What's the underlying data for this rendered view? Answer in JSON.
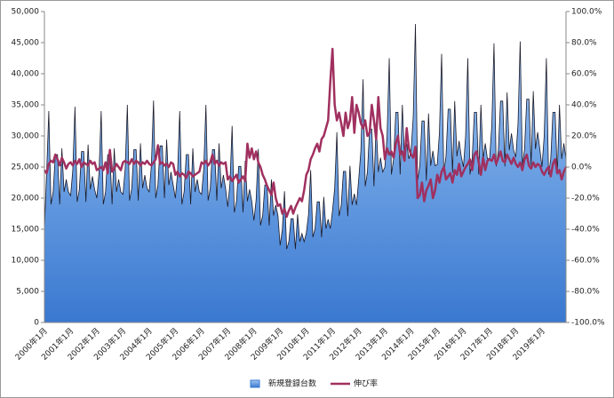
{
  "chart_data": {
    "type": "area-line",
    "categories": [
      "2000年1月",
      null,
      null,
      null,
      null,
      null,
      null,
      null,
      null,
      null,
      null,
      null,
      "2001年1月",
      null,
      null,
      null,
      null,
      null,
      null,
      null,
      null,
      null,
      null,
      null,
      "2002年1月",
      null,
      null,
      null,
      null,
      null,
      null,
      null,
      null,
      null,
      null,
      null,
      "2003年1月",
      null,
      null,
      null,
      null,
      null,
      null,
      null,
      null,
      null,
      null,
      null,
      "2004年1月",
      null,
      null,
      null,
      null,
      null,
      null,
      null,
      null,
      null,
      null,
      null,
      "2005年1月",
      null,
      null,
      null,
      null,
      null,
      null,
      null,
      null,
      null,
      null,
      null,
      "2006年1月",
      null,
      null,
      null,
      null,
      null,
      null,
      null,
      null,
      null,
      null,
      null,
      "2007年1月",
      null,
      null,
      null,
      null,
      null,
      null,
      null,
      null,
      null,
      null,
      null,
      "2008年1月",
      null,
      null,
      null,
      null,
      null,
      null,
      null,
      null,
      null,
      null,
      null,
      "2009年1月",
      null,
      null,
      null,
      null,
      null,
      null,
      null,
      null,
      null,
      null,
      null,
      "2010年1月",
      null,
      null,
      null,
      null,
      null,
      null,
      null,
      null,
      null,
      null,
      null,
      "2011年1月",
      null,
      null,
      null,
      null,
      null,
      null,
      null,
      null,
      null,
      null,
      null,
      "2012年1月",
      null,
      null,
      null,
      null,
      null,
      null,
      null,
      null,
      null,
      null,
      null,
      "2013年1月",
      null,
      null,
      null,
      null,
      null,
      null,
      null,
      null,
      null,
      null,
      null,
      "2014年1月",
      null,
      null,
      null,
      null,
      null,
      null,
      null,
      null,
      null,
      null,
      null,
      "2015年1月",
      null,
      null,
      null,
      null,
      null,
      null,
      null,
      null,
      null,
      null,
      null,
      "2016年1月",
      null,
      null,
      null,
      null,
      null,
      null,
      null,
      null,
      null,
      null,
      null,
      "2017年1月",
      null,
      null,
      null,
      null,
      null,
      null,
      null,
      null,
      null,
      null,
      null,
      "2018年1月",
      null,
      null,
      null,
      null,
      null,
      null,
      null,
      null,
      null,
      null,
      null,
      "2019年1月",
      null,
      null,
      null,
      null,
      null,
      null,
      null,
      null,
      null,
      null,
      null
    ],
    "series": [
      {
        "name": "新規登録台数",
        "color": "#4a86d8",
        "values": [
          15000,
          24000,
          34000,
          19000,
          21000,
          27000,
          27000,
          19000,
          28000,
          21000,
          23000,
          21000,
          20400,
          24500,
          34700,
          19400,
          21400,
          27500,
          27500,
          19400,
          28600,
          21400,
          23500,
          21400,
          20000,
          24000,
          34000,
          19000,
          21000,
          27000,
          27000,
          19000,
          28000,
          21000,
          23000,
          21000,
          20600,
          24700,
          35000,
          19600,
          21600,
          27800,
          27800,
          19600,
          28800,
          21600,
          23700,
          21600,
          21000,
          25200,
          35700,
          20000,
          22100,
          28400,
          28400,
          20000,
          29400,
          22100,
          24200,
          22100,
          20000,
          24000,
          34000,
          19000,
          21000,
          27000,
          27000,
          19000,
          28000,
          21000,
          23000,
          21000,
          20600,
          24700,
          35000,
          19600,
          21600,
          27800,
          27800,
          19600,
          28800,
          21600,
          23700,
          21600,
          18600,
          22300,
          31600,
          17700,
          19500,
          25100,
          25100,
          17700,
          26000,
          19500,
          21400,
          19500,
          16400,
          19700,
          27900,
          15600,
          17200,
          22100,
          22100,
          15600,
          23000,
          17200,
          18900,
          17200,
          12400,
          14900,
          21100,
          11800,
          13000,
          16700,
          16700,
          11800,
          17400,
          13000,
          14300,
          13000,
          14400,
          17300,
          24500,
          13700,
          15100,
          19400,
          19400,
          13700,
          20200,
          15100,
          16600,
          15100,
          18000,
          21600,
          30600,
          17100,
          18900,
          24300,
          24300,
          17100,
          25200,
          18900,
          20700,
          18900,
          23000,
          27600,
          39100,
          21900,
          24200,
          31100,
          31100,
          21900,
          32200,
          24200,
          26500,
          24200,
          25000,
          30000,
          42500,
          23800,
          26300,
          33800,
          33800,
          23800,
          35000,
          26300,
          28800,
          26300,
          27600,
          33100,
          48000,
          22800,
          25200,
          32400,
          32400,
          22800,
          33600,
          25200,
          27600,
          25200,
          25400,
          30500,
          43200,
          24100,
          26700,
          34300,
          34300,
          24100,
          35600,
          26700,
          29200,
          26700,
          25000,
          30000,
          42500,
          23800,
          26300,
          33800,
          33800,
          23800,
          35000,
          26300,
          28800,
          26300,
          26400,
          31700,
          44900,
          25100,
          27700,
          35600,
          35600,
          25100,
          37000,
          27700,
          30400,
          27700,
          26600,
          31900,
          45200,
          25300,
          27900,
          35900,
          35900,
          25300,
          37200,
          27900,
          30600,
          27900,
          25000,
          30000,
          42500,
          23800,
          26300,
          33800,
          33800,
          23800,
          35000,
          26300,
          28800,
          26300
        ]
      },
      {
        "name": "伸び率",
        "color": "#a0305f",
        "axis": "y2",
        "values": [
          -2,
          -4,
          2,
          4,
          3,
          8,
          5,
          1,
          6,
          3,
          -1,
          2,
          3,
          1,
          4,
          2,
          5,
          0,
          3,
          2,
          1,
          4,
          2,
          3,
          -2,
          -1,
          0,
          -2,
          3,
          -4,
          11,
          -3,
          -1,
          2,
          0,
          -2,
          3,
          4,
          3,
          2,
          5,
          2,
          4,
          3,
          1,
          3,
          2,
          4,
          2,
          1,
          3,
          5,
          14,
          2,
          3,
          1,
          2,
          0,
          3,
          2,
          -5,
          -3,
          -6,
          -4,
          -5,
          -7,
          -3,
          -4,
          -6,
          -5,
          -4,
          -3,
          3,
          2,
          4,
          1,
          3,
          8,
          2,
          4,
          1,
          3,
          2,
          3,
          -8,
          -6,
          -9,
          -7,
          -5,
          -10,
          -8,
          -6,
          -9,
          15,
          6,
          12,
          5,
          10,
          3,
          0,
          -5,
          -8,
          -12,
          -15,
          -18,
          -10,
          -20,
          -25,
          -24,
          -30,
          -27,
          -32,
          -28,
          -25,
          -30,
          -26,
          -23,
          -20,
          -22,
          -15,
          -5,
          -2,
          5,
          8,
          12,
          15,
          10,
          18,
          20,
          25,
          30,
          55,
          76,
          40,
          30,
          35,
          28,
          20,
          35,
          25,
          30,
          45,
          22,
          40,
          35,
          28,
          25,
          30,
          20,
          22,
          40,
          30,
          18,
          45,
          25,
          20,
          5,
          12,
          8,
          10,
          6,
          15,
          20,
          8,
          10,
          4,
          25,
          12,
          8,
          6,
          13,
          -20,
          -18,
          -10,
          -22,
          -15,
          -12,
          -8,
          -20,
          -15,
          -5,
          -10,
          -3,
          0,
          -8,
          -6,
          -4,
          -10,
          -2,
          -5,
          2,
          -6,
          -3,
          0,
          2,
          5,
          -2,
          8,
          10,
          3,
          -5,
          6,
          -2,
          4,
          5,
          4,
          8,
          2,
          6,
          10,
          4,
          3,
          8,
          5,
          2,
          6,
          2,
          0,
          3,
          -2,
          5,
          8,
          1,
          -1,
          3,
          0,
          2,
          1,
          -3,
          -5,
          -2,
          0,
          -6,
          2,
          5,
          -4,
          -2,
          -8,
          -3,
          0
        ]
      }
    ],
    "ylim": [
      0,
      50000
    ],
    "yticks": [
      0,
      {
        "value": 5000,
        "label": "5,000"
      },
      {
        "value": 10000,
        "label": "10,000"
      },
      {
        "value": 15000,
        "label": "15,000"
      },
      {
        "value": 20000,
        "label": "20,000"
      },
      {
        "value": 25000,
        "label": "25,000"
      },
      {
        "value": 30000,
        "label": "30,000"
      },
      {
        "value": 35000,
        "label": "35,000"
      },
      {
        "value": 40000,
        "label": "40,000"
      },
      {
        "value": 45000,
        "label": "45,000"
      },
      {
        "value": 50000,
        "label": "50,000"
      }
    ],
    "y2lim": [
      -100,
      100
    ],
    "y2ticks": [
      {
        "value": -100,
        "label": "-100.0%"
      },
      {
        "value": -80,
        "label": "-80.0%"
      },
      {
        "value": -60,
        "label": "-60.0%"
      },
      {
        "value": -40,
        "label": "-40.0%"
      },
      {
        "value": -20,
        "label": "-20.0%"
      },
      {
        "value": 0,
        "label": "0.0%"
      },
      {
        "value": 20,
        "label": "20.0%"
      },
      {
        "value": 40,
        "label": "40.0%"
      },
      {
        "value": 60,
        "label": "60.0%"
      },
      {
        "value": 80,
        "label": "80.0%"
      },
      {
        "value": 100,
        "label": "100.0%"
      }
    ],
    "legend": "bottom"
  }
}
